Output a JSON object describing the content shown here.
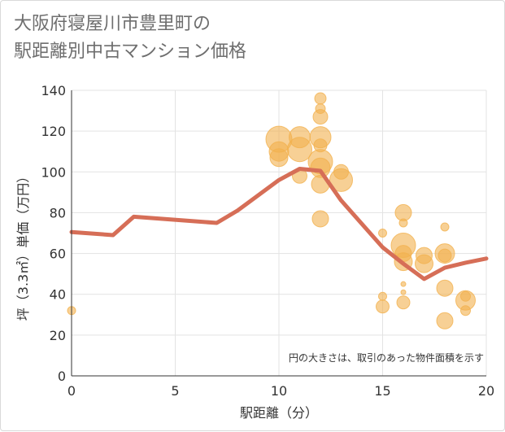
{
  "title_lines": [
    "大阪府寝屋川市豊里町の",
    "駅距離別中古マンション価格"
  ],
  "colors": {
    "bubble": "#f2b14f",
    "line": "#d66e57",
    "grid": "#e3e3e3",
    "axis": "#333333",
    "title": "#6e6e6e"
  },
  "chart_data": {
    "type": "scatter",
    "xlabel": "駅距離（分）",
    "ylabel": "坪（3.3㎡）単価（万円）",
    "xlim": [
      0,
      20
    ],
    "ylim": [
      0,
      140
    ],
    "xticks": [
      "0",
      "5",
      "10",
      "15",
      "20"
    ],
    "yticks": [
      "0",
      "20",
      "40",
      "60",
      "80",
      "100",
      "120",
      "140"
    ],
    "grid": "x-and-y",
    "note": "円の大きさは、取引のあった物件面積を示す",
    "bubbles": [
      {
        "x": 0,
        "y": 32,
        "size": 5
      },
      {
        "x": 10,
        "y": 116,
        "size": 16
      },
      {
        "x": 10,
        "y": 110,
        "size": 12
      },
      {
        "x": 10,
        "y": 107,
        "size": 11
      },
      {
        "x": 11,
        "y": 117,
        "size": 13
      },
      {
        "x": 11,
        "y": 111,
        "size": 15
      },
      {
        "x": 11,
        "y": 98,
        "size": 9
      },
      {
        "x": 12,
        "y": 136,
        "size": 7
      },
      {
        "x": 12,
        "y": 131,
        "size": 6
      },
      {
        "x": 12,
        "y": 127,
        "size": 9
      },
      {
        "x": 12,
        "y": 117,
        "size": 13
      },
      {
        "x": 12,
        "y": 113,
        "size": 8
      },
      {
        "x": 12,
        "y": 105,
        "size": 15
      },
      {
        "x": 12,
        "y": 102,
        "size": 12
      },
      {
        "x": 12,
        "y": 94,
        "size": 11
      },
      {
        "x": 12,
        "y": 77,
        "size": 10
      },
      {
        "x": 13,
        "y": 100,
        "size": 9
      },
      {
        "x": 13,
        "y": 96,
        "size": 14
      },
      {
        "x": 15,
        "y": 70,
        "size": 5
      },
      {
        "x": 15,
        "y": 39,
        "size": 5
      },
      {
        "x": 15,
        "y": 34,
        "size": 8
      },
      {
        "x": 16,
        "y": 80,
        "size": 10
      },
      {
        "x": 16,
        "y": 75,
        "size": 5
      },
      {
        "x": 16,
        "y": 64,
        "size": 15
      },
      {
        "x": 16,
        "y": 60,
        "size": 10
      },
      {
        "x": 16,
        "y": 56,
        "size": 11
      },
      {
        "x": 16,
        "y": 45,
        "size": 3
      },
      {
        "x": 16,
        "y": 41,
        "size": 3
      },
      {
        "x": 16,
        "y": 36,
        "size": 8
      },
      {
        "x": 17,
        "y": 59,
        "size": 10
      },
      {
        "x": 17,
        "y": 55,
        "size": 11
      },
      {
        "x": 18,
        "y": 73,
        "size": 5
      },
      {
        "x": 18,
        "y": 60,
        "size": 12
      },
      {
        "x": 18,
        "y": 59,
        "size": 8
      },
      {
        "x": 18,
        "y": 43,
        "size": 10
      },
      {
        "x": 18,
        "y": 27,
        "size": 10
      },
      {
        "x": 19,
        "y": 39,
        "size": 6
      },
      {
        "x": 19,
        "y": 37,
        "size": 12
      },
      {
        "x": 19,
        "y": 32,
        "size": 6
      }
    ],
    "trend": [
      {
        "x": 0,
        "y": 70.5
      },
      {
        "x": 2,
        "y": 69
      },
      {
        "x": 3,
        "y": 78
      },
      {
        "x": 7,
        "y": 75
      },
      {
        "x": 8,
        "y": 81
      },
      {
        "x": 10,
        "y": 96
      },
      {
        "x": 11,
        "y": 101.5
      },
      {
        "x": 12,
        "y": 100.5
      },
      {
        "x": 13,
        "y": 86
      },
      {
        "x": 15,
        "y": 63
      },
      {
        "x": 16,
        "y": 55
      },
      {
        "x": 17,
        "y": 47.5
      },
      {
        "x": 18,
        "y": 53
      },
      {
        "x": 19,
        "y": 55.5
      },
      {
        "x": 20,
        "y": 57.5
      }
    ]
  }
}
